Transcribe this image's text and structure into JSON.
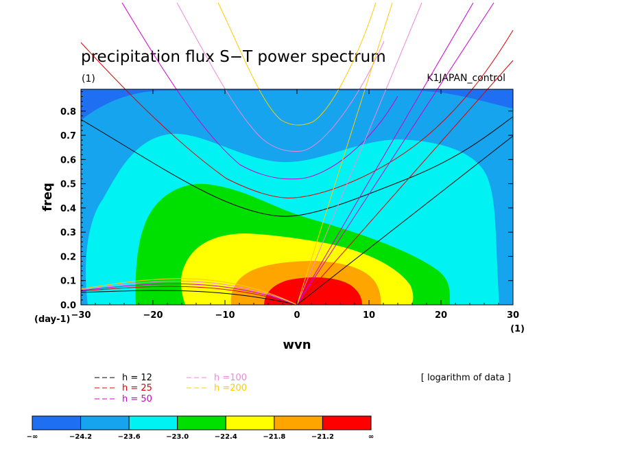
{
  "chart_data": {
    "type": "heatmap",
    "title": "precipitation flux S−T power spectrum",
    "subtitle_left": "(1)",
    "subtitle_right": "K1JAPAN_control",
    "xlabel": "wvn",
    "ylabel": "freq",
    "x_unit_label": "(1)",
    "y_unit_label": "(day-1)",
    "xlim": [
      -30,
      30
    ],
    "ylim": [
      0,
      0.89
    ],
    "x_ticks": [
      "−30",
      "−20",
      "−10",
      "0",
      "10",
      "20",
      "30"
    ],
    "y_ticks": [
      "0.0",
      "0.1",
      "0.2",
      "0.3",
      "0.4",
      "0.5",
      "0.6",
      "0.7",
      "0.8"
    ],
    "note": "[ logarithm of data ]",
    "contour_levels": [
      "−∞",
      "−24.2",
      "−23.6",
      "−23.0",
      "−22.4",
      "−21.8",
      "−21.2",
      "∞"
    ],
    "contour_colors": [
      "#1f6ff2",
      "#16a4ef",
      "#00f3f2",
      "#00e000",
      "#ffff00",
      "#ffa500",
      "#ff0000"
    ],
    "dispersion_legend": [
      {
        "label": "h = 12",
        "color": "#000000"
      },
      {
        "label": "h = 25",
        "color": "#dd0000"
      },
      {
        "label": "h = 50",
        "color": "#cc00cc"
      },
      {
        "label": "h =100",
        "color": "#ee88dd"
      },
      {
        "label": "h =200",
        "color": "#ffcc00"
      }
    ]
  }
}
